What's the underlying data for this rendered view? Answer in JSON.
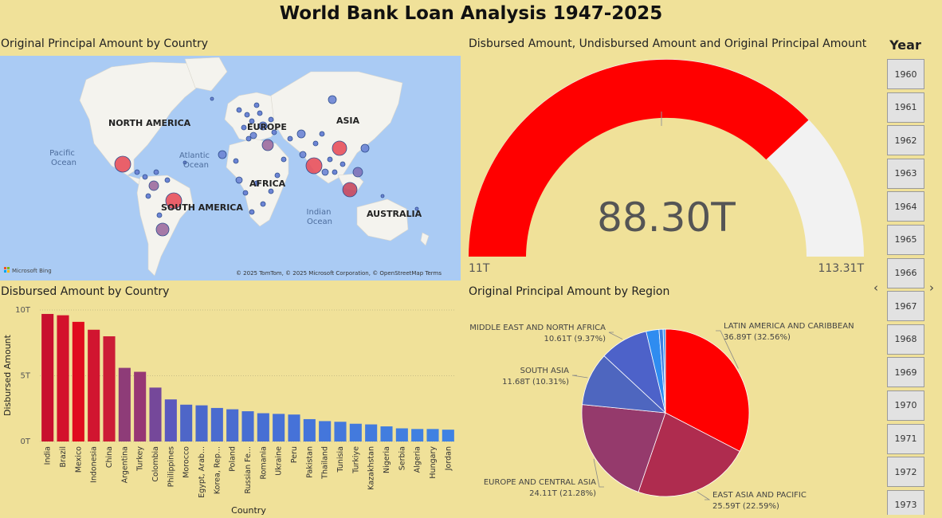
{
  "page": {
    "title": "World Bank Loan Analysis 1947-2025"
  },
  "map": {
    "title": "Original Principal Amount by Country",
    "labels": {
      "north_america": "NORTH AMERICA",
      "south_america": "SOUTH AMERICA",
      "europe": "EUROPE",
      "asia": "ASIA",
      "africa": "AFRICA",
      "australia": "AUSTRALIA",
      "pacific_1": "Pacific",
      "pacific_2": "Ocean",
      "atlantic_1": "Atlantic",
      "atlantic_2": "Ocean",
      "indian_1": "Indian",
      "indian_2": "Ocean"
    },
    "attribution": "© 2025 TomTom, © 2025 Microsoft Corporation, © OpenStreetMap  Terms",
    "logo_text": "Microsoft Bing",
    "colors": {
      "water": "#AACBF4",
      "land": "#F4F3EE",
      "high": "#E8505B",
      "mid": "#9C6B9E",
      "low": "#4D7FD0"
    }
  },
  "gauge": {
    "title": "Disbursed Amount, Undisbursed Amount and Original Principal Amount",
    "value_label": "88.30T",
    "min_label": "11T",
    "max_label": "113.31T",
    "colors": {
      "fill": "#FF0000",
      "track": "#F2F2F2"
    }
  },
  "slicer": {
    "title": "Year",
    "prev": "‹",
    "next": "›",
    "years": [
      "1960",
      "1961",
      "1962",
      "1963",
      "1964",
      "1965",
      "1966",
      "1967",
      "1968",
      "1969",
      "1970",
      "1971",
      "1972",
      "1973"
    ]
  },
  "chart_data": [
    {
      "type": "bar",
      "title": "Disbursed Amount by Country",
      "xlabel": "Country",
      "ylabel": "Disbursed Amount",
      "yticks": [
        "0T",
        "5T",
        "10T"
      ],
      "ylim": [
        0,
        10
      ],
      "grid": true,
      "categories": [
        "India",
        "Brazil",
        "Mexico",
        "Indonesia",
        "China",
        "Argentina",
        "Turkey",
        "Colombia",
        "Philippines",
        "Morocco",
        "Egypt, Arab...",
        "Korea, Rep...",
        "Poland",
        "Russian Fe...",
        "Romania",
        "Ukraine",
        "Peru",
        "Pakistan",
        "Thailand",
        "Tunisia",
        "Turkiye",
        "Kazakhstan",
        "Nigeria",
        "Serbia",
        "Algeria",
        "Hungary",
        "Jordan"
      ],
      "values": [
        9.7,
        9.6,
        9.1,
        8.5,
        8.0,
        5.6,
        5.3,
        4.1,
        3.2,
        2.8,
        2.75,
        2.55,
        2.45,
        2.3,
        2.15,
        2.1,
        2.05,
        1.7,
        1.55,
        1.5,
        1.35,
        1.3,
        1.15,
        1.0,
        0.95,
        0.95,
        0.9
      ],
      "colors": [
        "#C8102E",
        "#D3122C",
        "#E00B1E",
        "#D11530",
        "#CC1C36",
        "#8E3C78",
        "#973774",
        "#75489A",
        "#5B59BE",
        "#4E66C8",
        "#4A68CC",
        "#4A6BCF",
        "#4A6CD0",
        "#486ED2",
        "#476FD4",
        "#4771D6",
        "#4672D8",
        "#4474DA",
        "#4476DB",
        "#4478DC",
        "#437ADD",
        "#427BDE",
        "#417DDF",
        "#417EE0",
        "#4080E1",
        "#3F81E2",
        "#3F82E3"
      ]
    },
    {
      "type": "pie",
      "title": "Original Principal Amount by Region",
      "series": [
        {
          "name": "LATIN AMERICA AND CARIBBEAN",
          "value": 36.89,
          "value_label": "36.89T (32.56%)",
          "percent": 32.56,
          "color": "#FF0000"
        },
        {
          "name": "EAST ASIA AND PACIFIC",
          "value": 25.59,
          "value_label": "25.59T (22.59%)",
          "percent": 22.59,
          "color": "#AF2C4F"
        },
        {
          "name": "EUROPE AND CENTRAL ASIA",
          "value": 24.11,
          "value_label": "24.11T (21.28%)",
          "percent": 21.28,
          "color": "#953A6C"
        },
        {
          "name": "SOUTH ASIA",
          "value": 11.68,
          "value_label": "11.68T (10.31%)",
          "percent": 10.31,
          "color": "#4E66BF"
        },
        {
          "name": "MIDDLE EAST AND NORTH AFRICA",
          "value": 10.61,
          "value_label": "10.61T (9.37%)",
          "percent": 9.37,
          "color": "#4D62C9"
        },
        {
          "name": "",
          "value": 2.8,
          "percent": 2.47,
          "color": "#2F8CF0"
        },
        {
          "name": "",
          "value": 0.9,
          "percent": 0.8,
          "color": "#3E7FE0"
        },
        {
          "name": "",
          "value": 0.5,
          "percent": 0.42,
          "color": "#3A9BF5"
        }
      ]
    }
  ]
}
